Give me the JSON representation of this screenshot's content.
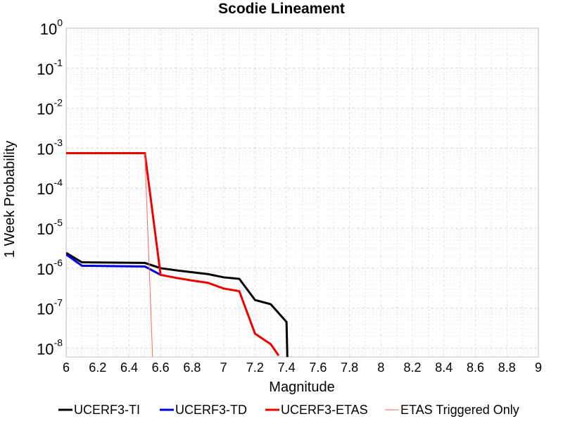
{
  "chart_data": {
    "type": "line",
    "title": "Scodie Lineament",
    "xlabel": "Magnitude",
    "ylabel": "1 Week Probability",
    "xlim": [
      6,
      9
    ],
    "ylim": [
      6e-09,
      1
    ],
    "yscale": "log",
    "grid": true,
    "legend_position": "bottom",
    "x_ticks": [
      "6",
      "6.2",
      "6.4",
      "6.6",
      "6.8",
      "7",
      "7.2",
      "7.4",
      "7.6",
      "7.8",
      "8",
      "8.2",
      "8.4",
      "8.6",
      "8.8",
      "9"
    ],
    "y_ticks": [
      {
        "base": "10",
        "exp": "0",
        "value": 1
      },
      {
        "base": "10",
        "exp": "-1",
        "value": 0.1
      },
      {
        "base": "10",
        "exp": "-2",
        "value": 0.01
      },
      {
        "base": "10",
        "exp": "-3",
        "value": 0.001
      },
      {
        "base": "10",
        "exp": "-4",
        "value": 0.0001
      },
      {
        "base": "10",
        "exp": "-5",
        "value": 1e-05
      },
      {
        "base": "10",
        "exp": "-6",
        "value": 1e-06
      },
      {
        "base": "10",
        "exp": "-7",
        "value": 1e-07
      },
      {
        "base": "10",
        "exp": "-8",
        "value": 1e-08
      }
    ],
    "series": [
      {
        "name": "UCERF3-TI",
        "color": "#000000",
        "width": 3,
        "x": [
          6.0,
          6.1,
          6.5,
          6.6,
          6.7,
          6.8,
          6.9,
          7.0,
          7.1,
          7.2,
          7.3,
          7.4,
          7.41
        ],
        "y": [
          2.4e-06,
          1.4e-06,
          1.35e-06,
          1e-06,
          8.8e-07,
          7.9e-07,
          7.1e-07,
          5.9e-07,
          5.4e-07,
          1.6e-07,
          1.25e-07,
          4.5e-08,
          1e-09
        ]
      },
      {
        "name": "UCERF3-TD",
        "color": "#0000dd",
        "width": 3,
        "x": [
          6.0,
          6.1,
          6.5,
          6.6
        ],
        "y": [
          2.2e-06,
          1.15e-06,
          1.1e-06,
          6.8e-07
        ]
      },
      {
        "name": "UCERF3-ETAS",
        "color": "#ee0000",
        "width": 3,
        "x": [
          6.0,
          6.5,
          6.6,
          6.7,
          6.8,
          6.9,
          7.0,
          7.1,
          7.2,
          7.3,
          7.35
        ],
        "y": [
          0.00075,
          0.00075,
          6.8e-07,
          5.7e-07,
          4.9e-07,
          4.3e-07,
          3.1e-07,
          2.65e-07,
          2.3e-08,
          1.25e-08,
          6.5e-09
        ]
      },
      {
        "name": "ETAS Triggered Only",
        "color": "#ff6666",
        "width": 1,
        "x": [
          6.5,
          6.55
        ],
        "y": [
          0.00075,
          5e-09
        ]
      }
    ]
  }
}
